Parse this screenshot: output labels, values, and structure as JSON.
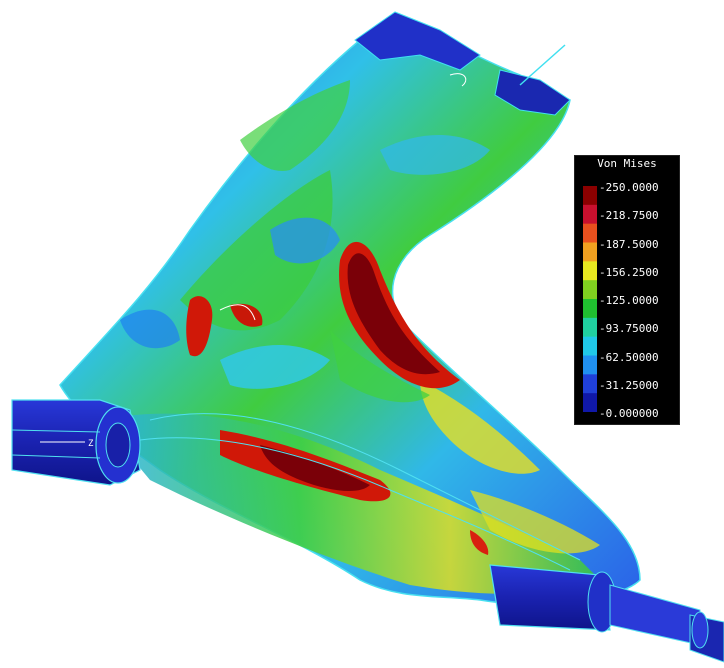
{
  "legend": {
    "title": "Von Mises",
    "ticks": [
      "250.0000",
      "218.7500",
      "187.5000",
      "156.2500",
      "125.0000",
      "93.75000",
      "62.50000",
      "31.25000",
      "0.000000"
    ],
    "colors": [
      "#8b0000",
      "#c8102e",
      "#e8501e",
      "#f0a020",
      "#e8e820",
      "#80d020",
      "#20c030",
      "#20d0a0",
      "#20c8e8",
      "#2090f0",
      "#2040d8",
      "#1018a8"
    ]
  },
  "scene": {
    "axis_label": "Z",
    "palette": {
      "dark_blue": "#1a1aa0",
      "blue": "#2050e0",
      "cyan": "#30c8f0",
      "green": "#30c830",
      "yellow": "#e8e020",
      "red": "#d82010",
      "dark_red": "#7a0008"
    }
  }
}
